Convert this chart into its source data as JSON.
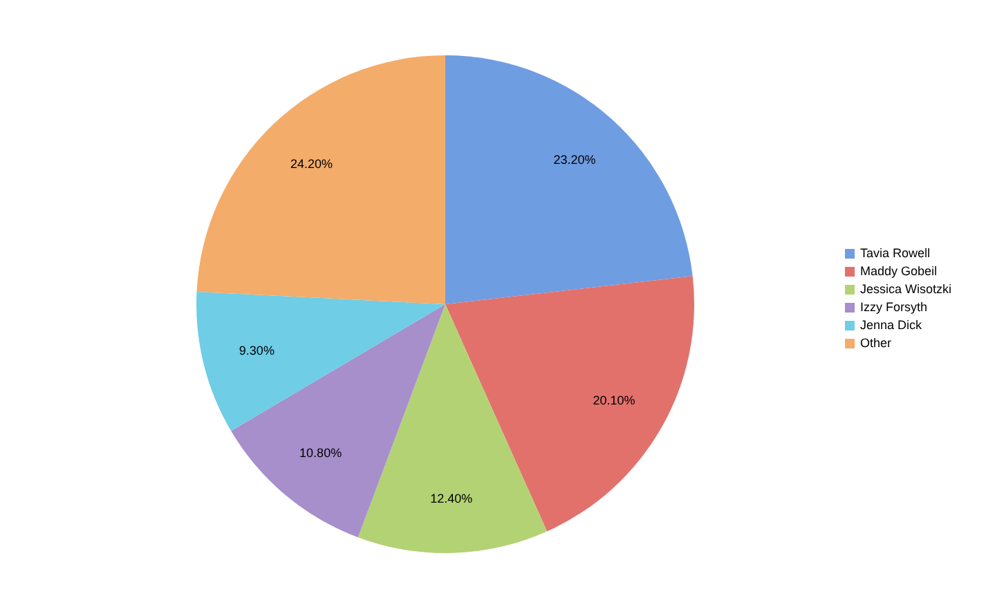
{
  "chart_data": {
    "type": "pie",
    "categories": [
      "Tavia Rowell",
      "Maddy Gobeil",
      "Jessica Wisotzki",
      "Izzy Forsyth",
      "Jenna Dick",
      "Other"
    ],
    "values": [
      23.2,
      20.1,
      12.4,
      10.8,
      9.3,
      24.2
    ],
    "colors": [
      "#6f9de2",
      "#e2716c",
      "#b3d274",
      "#a68fca",
      "#6fcde6",
      "#f4ac6a"
    ],
    "value_labels": [
      "23.20%",
      "20.10%",
      "12.40%",
      "10.80%",
      "9.30%",
      "24.20%"
    ],
    "legend": "right"
  }
}
